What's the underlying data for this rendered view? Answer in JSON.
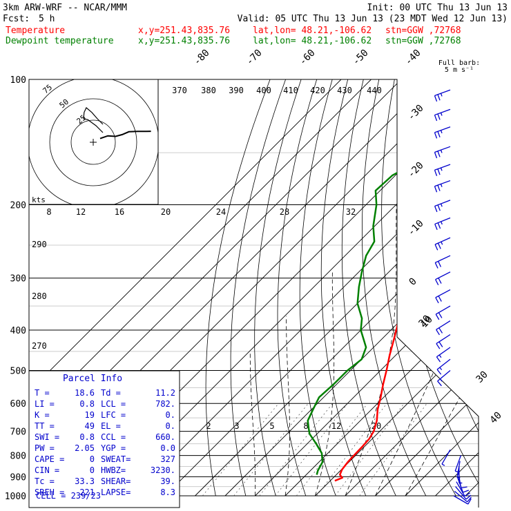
{
  "header": {
    "model": "3km ARW-WRF -- NCAR/MMM",
    "init": "Init: 00 UTC Thu 13 Jun 13",
    "fcst_label": "Fcst:",
    "fcst_value": "5 h",
    "valid": "Valid: 05 UTC Thu 13 Jun 13 (23 MDT Wed 12 Jun 13)",
    "temp_name": "Temperature",
    "dew_name": "Dewpoint temperature",
    "xy": "x,y=251.43,835.76",
    "latlon": "lat,lon= 48.21,-106.62",
    "stn": "stn=GGW ,72768"
  },
  "colors": {
    "temperature": "#ff0000",
    "dewpoint": "#008000",
    "parcel_box": "#0000cc",
    "wind_barbs": "#0000cc"
  },
  "barb_legend": {
    "line1": "Full barb:",
    "line2": "5 m s⁻¹"
  },
  "parcel_info": {
    "title": "Parcel Info",
    "rows": [
      {
        "a": "T  =",
        "av": "18.6",
        "b": "Td =",
        "bv": "11.2"
      },
      {
        "a": "LI =",
        "av": "0.8",
        "b": "LCL =",
        "bv": "782."
      },
      {
        "a": "K  =",
        "av": "19",
        "b": "LFC =",
        "bv": "0."
      },
      {
        "a": "TT =",
        "av": "49",
        "b": "EL  =",
        "bv": "0."
      },
      {
        "a": "SWI =",
        "av": "0.8",
        "b": "CCL =",
        "bv": "660."
      },
      {
        "a": "PW =",
        "av": "2.05",
        "b": "YGP =",
        "bv": "0.0"
      },
      {
        "a": "CAPE =",
        "av": "0",
        "b": "SWEAT=",
        "bv": "327"
      },
      {
        "a": "CIN =",
        "av": "0",
        "b": "HWBZ=",
        "bv": "3230."
      },
      {
        "a": "Tc =",
        "av": "33.3",
        "b": "SHEAR=",
        "bv": "39."
      },
      {
        "a": "SREH =",
        "av": "221",
        "b": "LAPSE=",
        "bv": "8.3"
      }
    ],
    "cell": "CELL = 239/23"
  },
  "chart_data": {
    "type": "line",
    "title": "",
    "ylabel_unit": "hPa",
    "y_scale": "log",
    "ylim": [
      1000,
      100
    ],
    "pressure_ticks": [
      100,
      200,
      300,
      400,
      500,
      600,
      700,
      800,
      900,
      1000
    ],
    "isotherm_labels": [
      -80,
      -70,
      -60,
      -50,
      -40,
      -30,
      -20,
      -10,
      0,
      10,
      20,
      30,
      40
    ],
    "theta_labels": [
      370,
      380,
      390,
      400,
      410,
      420,
      430,
      440
    ],
    "theta_left_labels": [
      290,
      280,
      270
    ],
    "mixing_ratio_labels_upper": [
      8,
      12,
      16,
      20,
      24,
      28,
      32
    ],
    "mixing_ratio_labels_lower": [
      2,
      3,
      5,
      8,
      12,
      20
    ],
    "hodograph": {
      "speed_unit": "kts",
      "ring_labels": [
        "25",
        "50",
        "75"
      ],
      "points": [
        [
          0.0,
          -0.1
        ],
        [
          0.35,
          0.05
        ],
        [
          0.7,
          0.02
        ],
        [
          1.0,
          0.12
        ],
        [
          1.3,
          0.28
        ],
        [
          1.7,
          0.3
        ],
        [
          2.1,
          0.3
        ],
        [
          2.3,
          0.31
        ]
      ],
      "points_upper": [
        [
          0.1,
          0.05
        ],
        [
          -0.15,
          0.3
        ],
        [
          -0.45,
          0.52
        ],
        [
          -0.6,
          0.55
        ],
        [
          -0.58,
          0.78
        ],
        [
          -0.5,
          0.95
        ],
        [
          -0.3,
          0.78
        ],
        [
          -0.1,
          0.55
        ],
        [
          0.1,
          0.35
        ]
      ]
    },
    "series": [
      {
        "name": "Temperature",
        "points": [
          [
            920,
            11.5
          ],
          [
            905,
            13.0
          ],
          [
            890,
            11.2
          ],
          [
            865,
            10.2
          ],
          [
            830,
            9.6
          ],
          [
            790,
            9.4
          ],
          [
            760,
            9.3
          ],
          [
            730,
            9.0
          ],
          [
            700,
            8.0
          ],
          [
            660,
            5.5
          ],
          [
            620,
            2.0
          ],
          [
            580,
            -1.0
          ],
          [
            540,
            -4.5
          ],
          [
            500,
            -8.0
          ],
          [
            460,
            -12.0
          ],
          [
            420,
            -16.0
          ],
          [
            380,
            -20.5
          ],
          [
            340,
            -26.0
          ],
          [
            300,
            -33.0
          ],
          [
            270,
            -39.5
          ],
          [
            245,
            -45.5
          ],
          [
            225,
            -50.0
          ],
          [
            205,
            -53.5
          ],
          [
            190,
            -56.0
          ],
          [
            170,
            -56.5
          ],
          [
            150,
            -58.0
          ],
          [
            130,
            -59.0
          ],
          [
            115,
            -60.0
          ],
          [
            100,
            -60.0
          ]
        ]
      },
      {
        "name": "Dewpoint temperature",
        "points": [
          [
            890,
            3.5
          ],
          [
            870,
            2.5
          ],
          [
            830,
            1.2
          ],
          [
            790,
            -2.0
          ],
          [
            750,
            -7.0
          ],
          [
            710,
            -12.5
          ],
          [
            690,
            -14.5
          ],
          [
            660,
            -17.5
          ],
          [
            620,
            -19.5
          ],
          [
            580,
            -21.5
          ],
          [
            540,
            -21.0
          ],
          [
            500,
            -21.0
          ],
          [
            470,
            -20.0
          ],
          [
            440,
            -22.5
          ],
          [
            400,
            -30.0
          ],
          [
            375,
            -33.5
          ],
          [
            345,
            -40.0
          ],
          [
            315,
            -45.0
          ],
          [
            290,
            -49.0
          ],
          [
            265,
            -53.0
          ],
          [
            245,
            -55.0
          ],
          [
            225,
            -60.5
          ],
          [
            200,
            -66.5
          ],
          [
            185,
            -71.5
          ],
          [
            170,
            -71.0
          ],
          [
            160,
            -68.0
          ],
          [
            140,
            -68.0
          ],
          [
            125,
            -70.0
          ],
          [
            100,
            -72.0
          ]
        ]
      }
    ],
    "winds": [
      [
        1000,
        120,
        8
      ],
      [
        975,
        130,
        9
      ],
      [
        950,
        140,
        10
      ],
      [
        925,
        150,
        10
      ],
      [
        900,
        160,
        10
      ],
      [
        875,
        170,
        9
      ],
      [
        850,
        180,
        7
      ],
      [
        825,
        190,
        6
      ],
      [
        800,
        200,
        5
      ],
      [
        775,
        210,
        5
      ],
      [
        500,
        230,
        15
      ],
      [
        470,
        232,
        16
      ],
      [
        440,
        235,
        17
      ],
      [
        410,
        237,
        18
      ],
      [
        380,
        238,
        19
      ],
      [
        350,
        240,
        20
      ],
      [
        320,
        242,
        21
      ],
      [
        290,
        243,
        22
      ],
      [
        265,
        245,
        22
      ],
      [
        240,
        246,
        23
      ],
      [
        215,
        248,
        24
      ],
      [
        195,
        249,
        24
      ],
      [
        175,
        250,
        25
      ],
      [
        160,
        250,
        25
      ],
      [
        145,
        250,
        25
      ],
      [
        130,
        250,
        24
      ],
      [
        118,
        250,
        24
      ],
      [
        106,
        250,
        23
      ]
    ]
  }
}
